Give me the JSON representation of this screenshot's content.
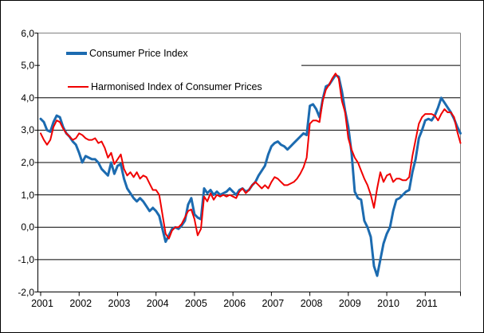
{
  "chart_data": {
    "type": "line",
    "title": "",
    "xlabel": "",
    "ylabel": "",
    "x_start": "2001-01",
    "x_end": "2011-12",
    "points_per_year": 12,
    "ylim": [
      -2,
      6
    ],
    "grid": true,
    "grid_color": "#000000",
    "plot_border_color": "#808080",
    "legend_position": "top-left-inside",
    "y_tick_values": [
      6,
      5,
      4,
      3,
      2,
      1,
      0,
      -1,
      -2
    ],
    "y_tick_labels": [
      "6,0",
      "5,0",
      "4,0",
      "3,0",
      "2,0",
      "1,0",
      "0,0",
      "-1,0",
      "-2,0"
    ],
    "x_tick_labels": [
      "2001",
      "2002",
      "2003",
      "2004",
      "2005",
      "2006",
      "2007",
      "2008",
      "2009",
      "2010",
      "2011"
    ],
    "series": [
      {
        "name": "Consumer Price Index",
        "color": "#1C6BB0",
        "width": 3,
        "values": [
          3.35,
          3.25,
          3.0,
          2.95,
          3.25,
          3.45,
          3.4,
          3.1,
          2.9,
          2.8,
          2.65,
          2.55,
          2.3,
          2.0,
          2.2,
          2.15,
          2.1,
          2.1,
          2.0,
          1.8,
          1.7,
          1.6,
          2.0,
          1.65,
          1.9,
          1.95,
          1.5,
          1.2,
          1.05,
          0.9,
          0.8,
          0.9,
          0.8,
          0.65,
          0.5,
          0.6,
          0.5,
          0.35,
          -0.05,
          -0.45,
          -0.25,
          -0.05,
          0.0,
          -0.05,
          0.05,
          0.2,
          0.7,
          0.9,
          0.4,
          0.3,
          0.25,
          1.2,
          1.05,
          1.15,
          1.0,
          1.1,
          1.0,
          1.05,
          1.1,
          1.2,
          1.1,
          1.0,
          1.15,
          1.2,
          1.1,
          1.15,
          1.3,
          1.4,
          1.6,
          1.75,
          1.9,
          2.25,
          2.5,
          2.6,
          2.65,
          2.55,
          2.5,
          2.4,
          2.5,
          2.6,
          2.7,
          2.8,
          2.9,
          2.85,
          3.75,
          3.8,
          3.65,
          3.4,
          3.95,
          4.35,
          4.4,
          4.55,
          4.7,
          4.65,
          4.2,
          3.6,
          3.1,
          2.3,
          1.1,
          0.9,
          0.85,
          0.2,
          0.0,
          -0.3,
          -1.2,
          -1.5,
          -1.0,
          -0.5,
          -0.2,
          0.0,
          0.5,
          0.85,
          0.9,
          1.0,
          1.1,
          1.15,
          1.7,
          2.1,
          2.75,
          3.0,
          3.3,
          3.35,
          3.3,
          3.45,
          3.7,
          4.0,
          3.85,
          3.7,
          3.55,
          3.35,
          3.1,
          2.9
        ]
      },
      {
        "name": "Harmonised Index of Consumer Prices",
        "color": "#F00000",
        "width": 2,
        "values": [
          2.9,
          2.7,
          2.55,
          2.7,
          3.1,
          3.3,
          3.25,
          3.05,
          2.9,
          2.8,
          2.7,
          2.75,
          2.9,
          2.85,
          2.75,
          2.7,
          2.7,
          2.75,
          2.6,
          2.65,
          2.45,
          2.15,
          2.3,
          1.95,
          2.1,
          2.25,
          1.8,
          1.6,
          1.7,
          1.55,
          1.7,
          1.5,
          1.6,
          1.55,
          1.35,
          1.15,
          1.15,
          1.0,
          0.4,
          -0.2,
          -0.35,
          -0.1,
          0.0,
          0.0,
          0.1,
          0.3,
          0.5,
          0.55,
          0.25,
          -0.25,
          -0.05,
          0.95,
          0.8,
          1.05,
          0.85,
          1.0,
          0.95,
          1.0,
          0.95,
          1.0,
          0.95,
          0.9,
          1.1,
          1.2,
          1.05,
          1.15,
          1.3,
          1.4,
          1.3,
          1.2,
          1.3,
          1.2,
          1.4,
          1.55,
          1.5,
          1.4,
          1.3,
          1.3,
          1.35,
          1.4,
          1.5,
          1.65,
          1.85,
          2.15,
          3.2,
          3.3,
          3.3,
          3.25,
          3.9,
          4.25,
          4.4,
          4.6,
          4.75,
          4.6,
          3.9,
          3.55,
          2.75,
          2.4,
          2.15,
          2.0,
          1.75,
          1.5,
          1.3,
          1.0,
          0.6,
          1.2,
          1.7,
          1.4,
          1.6,
          1.65,
          1.4,
          1.5,
          1.5,
          1.45,
          1.45,
          1.55,
          2.2,
          2.7,
          3.2,
          3.4,
          3.5,
          3.5,
          3.5,
          3.45,
          3.3,
          3.5,
          3.65,
          3.55,
          3.55,
          3.4,
          2.95,
          2.6
        ]
      }
    ]
  }
}
